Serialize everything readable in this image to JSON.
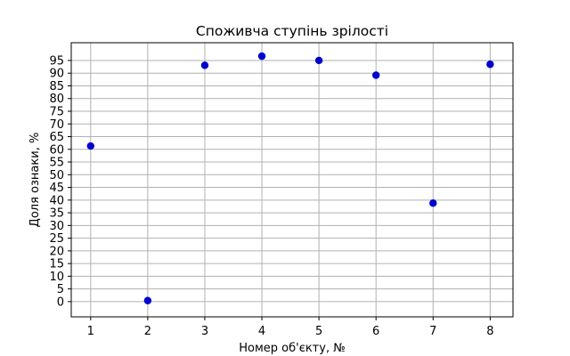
{
  "chart_data": {
    "type": "scatter",
    "title": "Споживча ступінь зрілості",
    "xlabel": "Номер об'єкту, №",
    "ylabel": "Доля ознаки, %",
    "x": [
      1,
      2,
      3,
      4,
      5,
      6,
      7,
      8
    ],
    "y": [
      61.3,
      0.4,
      93.1,
      96.7,
      95.0,
      89.2,
      38.8,
      93.5
    ],
    "xlim": [
      0.66,
      8.4
    ],
    "ylim": [
      -6,
      102
    ],
    "xticks": [
      "1",
      "2",
      "3",
      "4",
      "5",
      "6",
      "7",
      "8"
    ],
    "yticks": [
      "0",
      "5",
      "10",
      "15",
      "20",
      "25",
      "30",
      "35",
      "40",
      "45",
      "50",
      "55",
      "60",
      "65",
      "70",
      "75",
      "80",
      "85",
      "90",
      "95"
    ],
    "grid": true,
    "marker_color": "#0000cc",
    "grid_color": "#b0b0b0"
  }
}
